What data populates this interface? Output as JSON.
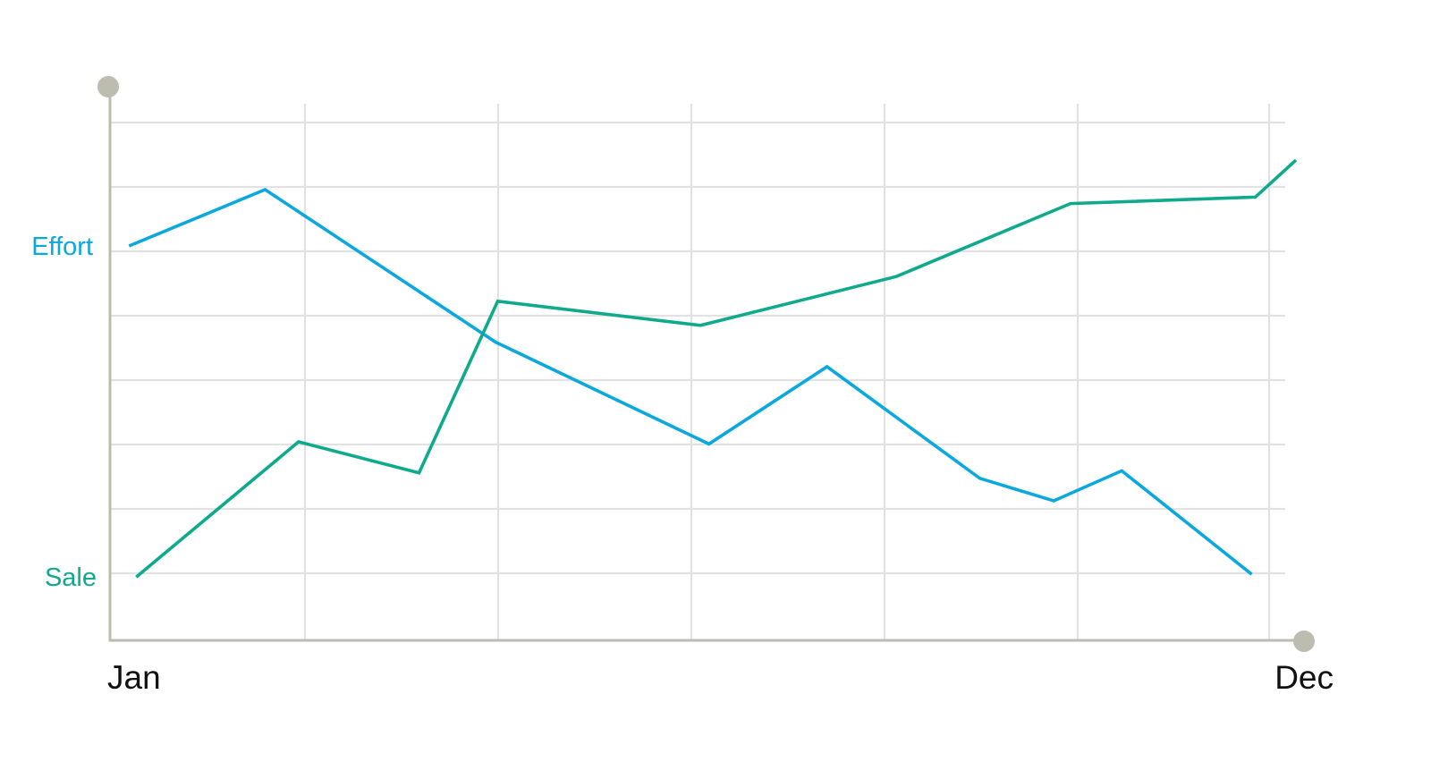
{
  "chart_data": {
    "type": "line",
    "title": "",
    "xlabel": "",
    "ylabel": "",
    "x_tick_labels": [
      "Jan",
      "Dec"
    ],
    "xlim": [
      0,
      1
    ],
    "ylim": [
      0,
      1
    ],
    "grid": true,
    "legend": "inline labels left of the y-axis",
    "series": [
      {
        "name": "Effort",
        "color": "#0aa8dd",
        "x": [
          0.016,
          0.13,
          0.323,
          0.502,
          0.601,
          0.729,
          0.791,
          0.848,
          0.957
        ],
        "y": [
          0.735,
          0.84,
          0.556,
          0.366,
          0.51,
          0.302,
          0.26,
          0.316,
          0.123
        ]
      },
      {
        "name": "Sale",
        "color": "#0faa8c",
        "x": [
          0.022,
          0.158,
          0.259,
          0.325,
          0.495,
          0.659,
          0.805,
          0.96,
          0.994
        ],
        "y": [
          0.118,
          0.37,
          0.312,
          0.632,
          0.587,
          0.678,
          0.814,
          0.826,
          0.895
        ]
      }
    ]
  }
}
